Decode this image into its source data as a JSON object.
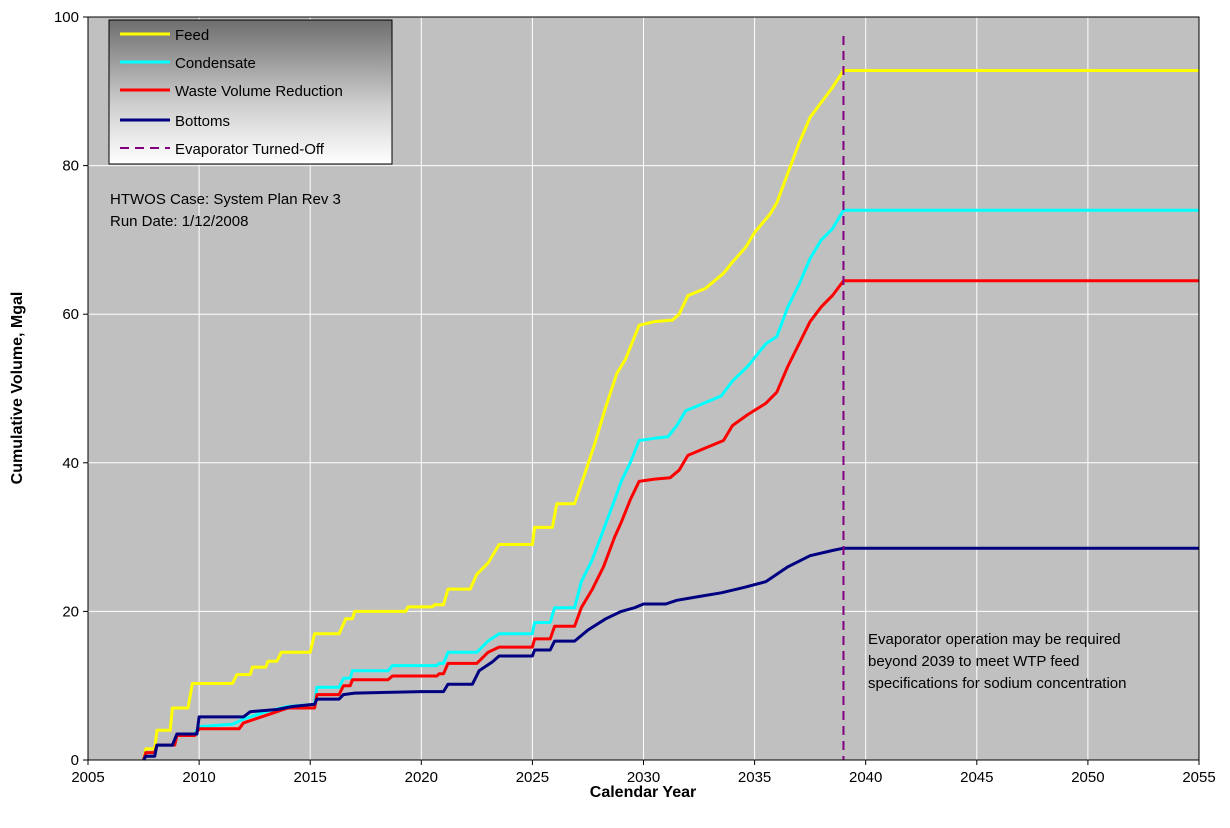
{
  "chart_data": {
    "type": "line",
    "title": "",
    "xlabel": "Calendar Year",
    "ylabel": "Cumulative Volume, Mgal",
    "xlim": [
      2005,
      2055
    ],
    "ylim": [
      0,
      100
    ],
    "xticks": [
      2005,
      2010,
      2015,
      2020,
      2025,
      2030,
      2035,
      2040,
      2045,
      2050,
      2055
    ],
    "yticks": [
      0,
      20,
      40,
      60,
      80,
      100
    ],
    "grid": true,
    "legend_position": "top-left",
    "plot_background": "#c0c0c0",
    "series": [
      {
        "name": "Feed",
        "color": "#ffff00",
        "points": [
          [
            2007.5,
            0
          ],
          [
            2007.6,
            1.5
          ],
          [
            2008.0,
            1.5
          ],
          [
            2008.1,
            4.0
          ],
          [
            2008.7,
            4.0
          ],
          [
            2008.8,
            7.0
          ],
          [
            2009.5,
            7.0
          ],
          [
            2009.7,
            10.3
          ],
          [
            2011.5,
            10.3
          ],
          [
            2011.7,
            11.5
          ],
          [
            2012.3,
            11.5
          ],
          [
            2012.4,
            12.5
          ],
          [
            2013.0,
            12.5
          ],
          [
            2013.1,
            13.3
          ],
          [
            2013.5,
            13.3
          ],
          [
            2013.7,
            14.5
          ],
          [
            2015.0,
            14.5
          ],
          [
            2015.2,
            17.0
          ],
          [
            2016.3,
            17.0
          ],
          [
            2016.6,
            19.0
          ],
          [
            2016.9,
            19.0
          ],
          [
            2017.0,
            20.0
          ],
          [
            2019.3,
            20.0
          ],
          [
            2019.4,
            20.6
          ],
          [
            2020.5,
            20.6
          ],
          [
            2020.6,
            20.9
          ],
          [
            2021.0,
            20.9
          ],
          [
            2021.2,
            23.0
          ],
          [
            2022.2,
            23.0
          ],
          [
            2022.5,
            25.0
          ],
          [
            2023.0,
            26.5
          ],
          [
            2023.5,
            29.0
          ],
          [
            2025.0,
            29.0
          ],
          [
            2025.1,
            31.3
          ],
          [
            2025.9,
            31.3
          ],
          [
            2026.1,
            34.5
          ],
          [
            2026.9,
            34.5
          ],
          [
            2027.3,
            38.0
          ],
          [
            2027.8,
            42.5
          ],
          [
            2028.3,
            47.5
          ],
          [
            2028.8,
            52.0
          ],
          [
            2029.2,
            54.0
          ],
          [
            2029.6,
            57.0
          ],
          [
            2029.8,
            58.5
          ],
          [
            2030.5,
            59.0
          ],
          [
            2031.3,
            59.2
          ],
          [
            2031.6,
            60.0
          ],
          [
            2032.0,
            62.5
          ],
          [
            2032.8,
            63.5
          ],
          [
            2033.6,
            65.5
          ],
          [
            2034.0,
            67.0
          ],
          [
            2034.6,
            69.0
          ],
          [
            2035.0,
            71.0
          ],
          [
            2035.7,
            73.5
          ],
          [
            2036.0,
            75.0
          ],
          [
            2036.5,
            79.0
          ],
          [
            2037.0,
            83.0
          ],
          [
            2037.5,
            86.5
          ],
          [
            2038.0,
            88.5
          ],
          [
            2038.5,
            90.5
          ],
          [
            2039.0,
            92.8
          ],
          [
            2055.0,
            92.8
          ]
        ]
      },
      {
        "name": "Condensate",
        "color": "#00ffff",
        "points": [
          [
            2007.5,
            0
          ],
          [
            2007.6,
            1.0
          ],
          [
            2008.0,
            1.0
          ],
          [
            2008.1,
            2.0
          ],
          [
            2008.9,
            2.0
          ],
          [
            2009.0,
            3.5
          ],
          [
            2009.8,
            3.5
          ],
          [
            2010.0,
            4.5
          ],
          [
            2011.5,
            4.8
          ],
          [
            2012.0,
            5.5
          ],
          [
            2013.0,
            6.5
          ],
          [
            2014.0,
            7.2
          ],
          [
            2015.2,
            7.5
          ],
          [
            2015.3,
            9.8
          ],
          [
            2016.3,
            9.8
          ],
          [
            2016.5,
            11.0
          ],
          [
            2016.8,
            11.0
          ],
          [
            2016.9,
            12.0
          ],
          [
            2018.5,
            12.0
          ],
          [
            2018.7,
            12.7
          ],
          [
            2020.7,
            12.7
          ],
          [
            2020.8,
            13.0
          ],
          [
            2021.0,
            13.0
          ],
          [
            2021.2,
            14.5
          ],
          [
            2022.5,
            14.5
          ],
          [
            2023.0,
            16.0
          ],
          [
            2023.5,
            17.0
          ],
          [
            2025.0,
            17.0
          ],
          [
            2025.1,
            18.5
          ],
          [
            2025.8,
            18.5
          ],
          [
            2026.0,
            20.5
          ],
          [
            2026.9,
            20.5
          ],
          [
            2027.2,
            24.0
          ],
          [
            2027.7,
            27.0
          ],
          [
            2028.2,
            31.0
          ],
          [
            2028.7,
            35.0
          ],
          [
            2029.0,
            37.5
          ],
          [
            2029.4,
            40.0
          ],
          [
            2029.8,
            43.0
          ],
          [
            2030.5,
            43.3
          ],
          [
            2031.1,
            43.5
          ],
          [
            2031.5,
            45.0
          ],
          [
            2031.9,
            47.0
          ],
          [
            2032.7,
            48.0
          ],
          [
            2033.5,
            49.0
          ],
          [
            2034.0,
            51.0
          ],
          [
            2034.7,
            53.0
          ],
          [
            2035.5,
            56.0
          ],
          [
            2036.0,
            57.0
          ],
          [
            2036.5,
            61.0
          ],
          [
            2037.0,
            64.0
          ],
          [
            2037.5,
            67.5
          ],
          [
            2038.0,
            70.0
          ],
          [
            2038.5,
            71.5
          ],
          [
            2039.0,
            74.0
          ],
          [
            2055.0,
            74.0
          ]
        ]
      },
      {
        "name": "Waste Volume Reduction",
        "color": "#ff0000",
        "points": [
          [
            2007.5,
            0
          ],
          [
            2007.6,
            1.0
          ],
          [
            2008.0,
            1.0
          ],
          [
            2008.1,
            2.0
          ],
          [
            2008.9,
            2.0
          ],
          [
            2009.0,
            3.3
          ],
          [
            2009.8,
            3.3
          ],
          [
            2010.0,
            4.2
          ],
          [
            2011.8,
            4.2
          ],
          [
            2012.0,
            5.0
          ],
          [
            2013.0,
            6.0
          ],
          [
            2014.0,
            7.0
          ],
          [
            2015.2,
            7.0
          ],
          [
            2015.3,
            8.8
          ],
          [
            2016.3,
            8.8
          ],
          [
            2016.5,
            10.0
          ],
          [
            2016.8,
            10.0
          ],
          [
            2016.9,
            10.8
          ],
          [
            2018.5,
            10.8
          ],
          [
            2018.7,
            11.3
          ],
          [
            2020.7,
            11.3
          ],
          [
            2020.8,
            11.6
          ],
          [
            2021.0,
            11.6
          ],
          [
            2021.2,
            13.0
          ],
          [
            2022.5,
            13.0
          ],
          [
            2023.0,
            14.5
          ],
          [
            2023.5,
            15.2
          ],
          [
            2025.0,
            15.2
          ],
          [
            2025.1,
            16.3
          ],
          [
            2025.8,
            16.3
          ],
          [
            2026.0,
            18.0
          ],
          [
            2026.9,
            18.0
          ],
          [
            2027.2,
            20.5
          ],
          [
            2027.7,
            23.0
          ],
          [
            2028.2,
            26.0
          ],
          [
            2028.7,
            30.0
          ],
          [
            2029.0,
            32.0
          ],
          [
            2029.4,
            35.0
          ],
          [
            2029.8,
            37.5
          ],
          [
            2030.5,
            37.8
          ],
          [
            2031.2,
            38.0
          ],
          [
            2031.6,
            39.0
          ],
          [
            2032.0,
            41.0
          ],
          [
            2032.8,
            42.0
          ],
          [
            2033.6,
            43.0
          ],
          [
            2034.0,
            45.0
          ],
          [
            2034.7,
            46.5
          ],
          [
            2035.5,
            48.0
          ],
          [
            2036.0,
            49.5
          ],
          [
            2036.5,
            53.0
          ],
          [
            2037.0,
            56.0
          ],
          [
            2037.5,
            59.0
          ],
          [
            2038.0,
            61.0
          ],
          [
            2038.5,
            62.5
          ],
          [
            2039.0,
            64.5
          ],
          [
            2055.0,
            64.5
          ]
        ]
      },
      {
        "name": "Bottoms",
        "color": "#000080",
        "points": [
          [
            2007.5,
            0
          ],
          [
            2007.6,
            0.5
          ],
          [
            2008.0,
            0.5
          ],
          [
            2008.1,
            2.0
          ],
          [
            2008.8,
            2.0
          ],
          [
            2009.0,
            3.5
          ],
          [
            2009.9,
            3.5
          ],
          [
            2010.0,
            5.8
          ],
          [
            2012.0,
            5.8
          ],
          [
            2012.3,
            6.5
          ],
          [
            2013.5,
            6.8
          ],
          [
            2014.2,
            7.2
          ],
          [
            2015.2,
            7.5
          ],
          [
            2015.3,
            8.2
          ],
          [
            2016.3,
            8.2
          ],
          [
            2016.5,
            8.8
          ],
          [
            2017.0,
            9.0
          ],
          [
            2020.0,
            9.2
          ],
          [
            2021.0,
            9.2
          ],
          [
            2021.2,
            10.2
          ],
          [
            2022.3,
            10.2
          ],
          [
            2022.6,
            12.0
          ],
          [
            2023.2,
            13.2
          ],
          [
            2023.5,
            14.0
          ],
          [
            2025.0,
            14.0
          ],
          [
            2025.1,
            14.8
          ],
          [
            2025.8,
            14.8
          ],
          [
            2026.0,
            16.0
          ],
          [
            2026.9,
            16.0
          ],
          [
            2027.5,
            17.5
          ],
          [
            2028.3,
            19.0
          ],
          [
            2029.0,
            20.0
          ],
          [
            2029.6,
            20.5
          ],
          [
            2030.0,
            21.0
          ],
          [
            2031.0,
            21.0
          ],
          [
            2031.5,
            21.5
          ],
          [
            2032.5,
            22.0
          ],
          [
            2033.5,
            22.5
          ],
          [
            2034.5,
            23.2
          ],
          [
            2035.5,
            24.0
          ],
          [
            2036.5,
            26.0
          ],
          [
            2037.5,
            27.5
          ],
          [
            2038.5,
            28.2
          ],
          [
            2039.0,
            28.5
          ],
          [
            2055.0,
            28.5
          ]
        ]
      }
    ],
    "legend": [
      {
        "label": "Feed",
        "color": "#ffff00",
        "style": "solid"
      },
      {
        "label": "Condensate",
        "color": "#00ffff",
        "style": "solid"
      },
      {
        "label": "Waste Volume Reduction",
        "color": "#ff0000",
        "style": "solid"
      },
      {
        "label": "Bottoms",
        "color": "#000080",
        "style": "solid"
      },
      {
        "label": "Evaporator Turned-Off",
        "color": "#800080",
        "style": "dashed"
      }
    ],
    "vline": {
      "x": 2039,
      "label": "Evaporator Turned-Off",
      "color": "#800080"
    },
    "annotations": {
      "case_info": [
        "HTWOS Case: System Plan Rev 3",
        "Run Date: 1/12/2008"
      ],
      "note": [
        "Evaporator operation may be required",
        "beyond 2039 to meet WTP feed",
        "specifications for sodium concentration"
      ]
    }
  }
}
